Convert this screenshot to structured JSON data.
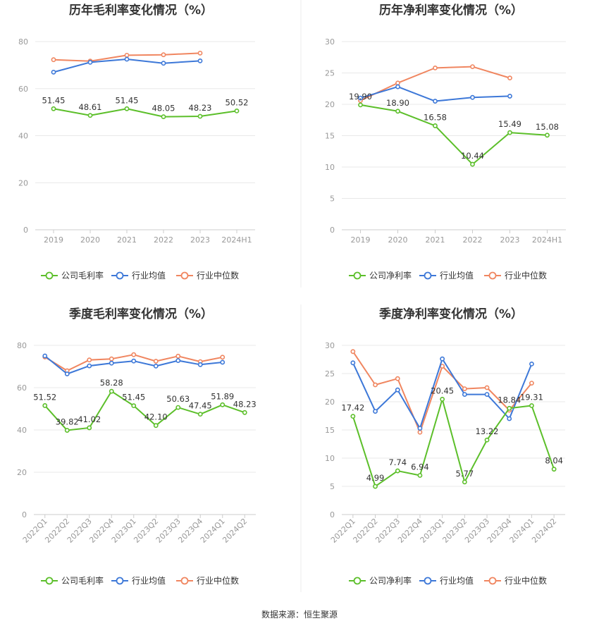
{
  "source": "数据来源：恒生聚源",
  "legend": {
    "gross": [
      "公司毛利率",
      "行业均值",
      "行业中位数"
    ],
    "net": [
      "公司净利率",
      "行业均值",
      "行业中位数"
    ]
  },
  "colors": {
    "company": "#5cbf2a",
    "mean": "#3d78d8",
    "median": "#f08660",
    "grid": "#e8e8e8",
    "axis": "#cccccc"
  },
  "chart_data": [
    {
      "type": "line",
      "title": "历年毛利率变化情况（%）",
      "categories": [
        "2019",
        "2020",
        "2021",
        "2022",
        "2023",
        "2024H1"
      ],
      "ylim": [
        0,
        80
      ],
      "yticks": [
        0,
        20,
        40,
        60,
        80
      ],
      "series": [
        {
          "name": "公司毛利率",
          "values": [
            51.45,
            48.61,
            51.45,
            48.05,
            48.23,
            50.52
          ],
          "labels": [
            "51.45",
            "48.61",
            "51.45",
            "48.05",
            "48.23",
            "50.52"
          ]
        },
        {
          "name": "行业均值",
          "values": [
            67.0,
            71.2,
            72.5,
            70.8,
            71.8,
            null
          ]
        },
        {
          "name": "行业中位数",
          "values": [
            72.3,
            71.7,
            74.2,
            74.4,
            75.1,
            null
          ]
        }
      ]
    },
    {
      "type": "line",
      "title": "历年净利率变化情况（%）",
      "categories": [
        "2019",
        "2020",
        "2021",
        "2022",
        "2023",
        "2024H1"
      ],
      "ylim": [
        0,
        30
      ],
      "yticks": [
        0,
        5,
        10,
        15,
        20,
        25,
        30
      ],
      "series": [
        {
          "name": "公司净利率",
          "values": [
            19.9,
            18.9,
            16.58,
            10.44,
            15.49,
            15.08
          ],
          "labels": [
            "19.90",
            "18.90",
            "16.58",
            "10.44",
            "15.49",
            "15.08"
          ]
        },
        {
          "name": "行业均值",
          "values": [
            21.0,
            22.8,
            20.5,
            21.1,
            21.3,
            null
          ]
        },
        {
          "name": "行业中位数",
          "values": [
            20.6,
            23.4,
            25.8,
            26.0,
            24.2,
            null
          ]
        }
      ]
    },
    {
      "type": "line",
      "title": "季度毛利率变化情况（%）",
      "categories": [
        "2022Q1",
        "2022Q2",
        "2022Q3",
        "2022Q4",
        "2023Q1",
        "2023Q2",
        "2023Q3",
        "2023Q4",
        "2024Q1",
        "2024Q2"
      ],
      "ylim": [
        0,
        80
      ],
      "yticks": [
        0,
        20,
        40,
        60,
        80
      ],
      "series": [
        {
          "name": "公司毛利率",
          "values": [
            51.52,
            39.82,
            41.02,
            58.28,
            51.45,
            42.1,
            50.63,
            47.45,
            51.89,
            48.23
          ],
          "labels": [
            "51.52",
            "39.82",
            "41.02",
            "58.28",
            "51.45",
            "42.10",
            "50.63",
            "47.45",
            "51.89",
            "48.23"
          ]
        },
        {
          "name": "行业均值",
          "values": [
            75.0,
            66.5,
            70.3,
            71.6,
            72.6,
            70.2,
            72.8,
            70.9,
            72.0,
            null
          ]
        },
        {
          "name": "行业中位数",
          "values": [
            74.5,
            68.0,
            73.1,
            73.6,
            75.6,
            72.5,
            74.9,
            72.3,
            74.4,
            null
          ]
        }
      ]
    },
    {
      "type": "line",
      "title": "季度净利率变化情况（%）",
      "categories": [
        "2022Q1",
        "2022Q2",
        "2022Q3",
        "2022Q4",
        "2023Q1",
        "2023Q2",
        "2023Q3",
        "2023Q4",
        "2024Q1",
        "2024Q2"
      ],
      "ylim": [
        0,
        30
      ],
      "yticks": [
        0,
        5,
        10,
        15,
        20,
        25,
        30
      ],
      "series": [
        {
          "name": "公司净利率",
          "values": [
            17.42,
            4.99,
            7.74,
            6.94,
            20.45,
            5.77,
            13.22,
            18.84,
            19.31,
            8.04
          ],
          "labels": [
            "17.42",
            "4.99",
            "7.74",
            "6.94",
            "20.45",
            "5.77",
            "13.22",
            "18.84",
            "19.31",
            "8.04"
          ]
        },
        {
          "name": "行业均值",
          "values": [
            26.9,
            18.3,
            22.1,
            15.3,
            27.6,
            21.3,
            21.3,
            17.0,
            26.7,
            null
          ]
        },
        {
          "name": "行业中位数",
          "values": [
            28.9,
            23.0,
            24.1,
            14.6,
            26.3,
            22.3,
            22.5,
            18.5,
            23.3,
            null
          ]
        }
      ]
    }
  ]
}
